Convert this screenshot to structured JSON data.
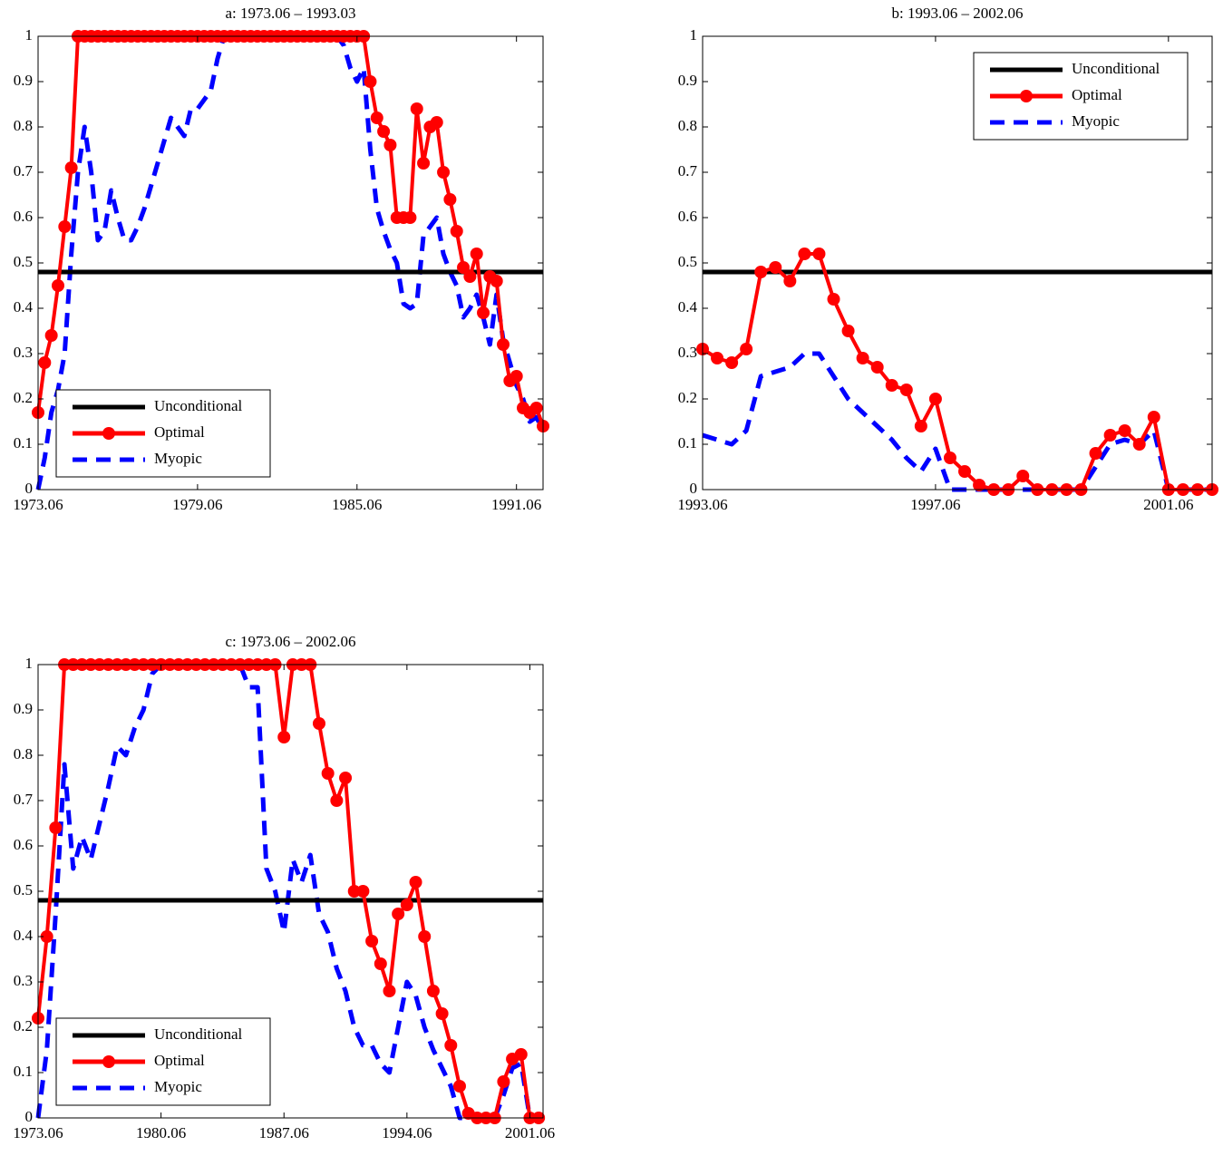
{
  "chart_data": [
    {
      "type": "line",
      "title": "a: 1973.06 – 1993.03",
      "legend": "lower left",
      "grid": false,
      "xlim": [
        1973.5,
        1992.5
      ],
      "ylim": [
        0,
        1
      ],
      "xticks": [
        {
          "value": 1973.5,
          "label": "1973.06"
        },
        {
          "value": 1979.5,
          "label": "1979.06"
        },
        {
          "value": 1985.5,
          "label": "1985.06"
        },
        {
          "value": 1991.5,
          "label": "1991.06"
        }
      ],
      "yticks": [
        0,
        0.1,
        0.2,
        0.3,
        0.4,
        0.5,
        0.6,
        0.7,
        0.8,
        0.9,
        1
      ],
      "x": [
        1973.5,
        1973.75,
        1974,
        1974.25,
        1974.5,
        1974.75,
        1975,
        1975.25,
        1975.5,
        1975.75,
        1976,
        1976.25,
        1976.5,
        1976.75,
        1977,
        1977.25,
        1977.5,
        1977.75,
        1978,
        1978.25,
        1978.5,
        1978.75,
        1979,
        1979.25,
        1979.5,
        1979.75,
        1980,
        1980.25,
        1980.5,
        1980.75,
        1981,
        1981.25,
        1981.5,
        1981.75,
        1982,
        1982.25,
        1982.5,
        1982.75,
        1983,
        1983.25,
        1983.5,
        1983.75,
        1984,
        1984.25,
        1984.5,
        1984.75,
        1985,
        1985.25,
        1985.5,
        1985.75,
        1986,
        1986.25,
        1986.5,
        1986.75,
        1987,
        1987.25,
        1987.5,
        1987.75,
        1988,
        1988.25,
        1988.5,
        1988.75,
        1989,
        1989.25,
        1989.5,
        1989.75,
        1990,
        1990.25,
        1990.5,
        1990.75,
        1991,
        1991.25,
        1991.5,
        1991.75,
        1992,
        1992.25,
        1992.5
      ],
      "series": [
        {
          "name": "Unconditional",
          "color": "#000000",
          "style": "solid",
          "x": [
            1973.5,
            1992.5
          ],
          "values": [
            0.48,
            0.48
          ]
        },
        {
          "name": "Optimal",
          "color": "#ff0000",
          "style": "solid",
          "marker": "circle",
          "values": [
            0.17,
            0.28,
            0.34,
            0.45,
            0.58,
            0.71,
            1,
            1,
            1,
            1,
            1,
            1,
            1,
            1,
            1,
            1,
            1,
            1,
            1,
            1,
            1,
            1,
            1,
            1,
            1,
            1,
            1,
            1,
            1,
            1,
            1,
            1,
            1,
            1,
            1,
            1,
            1,
            1,
            1,
            1,
            1,
            1,
            1,
            1,
            1,
            1,
            1,
            1,
            1,
            1,
            0.9,
            0.82,
            0.79,
            0.76,
            0.6,
            0.6,
            0.6,
            0.84,
            0.72,
            0.8,
            0.81,
            0.7,
            0.64,
            0.57,
            0.49,
            0.47,
            0.52,
            0.39,
            0.47,
            0.46,
            0.32,
            0.24,
            0.25,
            0.18,
            0.17,
            0.18,
            0.14
          ]
        },
        {
          "name": "Myopic",
          "color": "#0000ff",
          "style": "dashed",
          "values": [
            0,
            0.07,
            0.17,
            0.22,
            0.3,
            0.52,
            0.7,
            0.8,
            0.7,
            0.55,
            0.57,
            0.66,
            0.6,
            0.55,
            0.55,
            0.58,
            0.62,
            0.67,
            0.72,
            0.77,
            0.82,
            0.8,
            0.78,
            0.84,
            0.84,
            0.86,
            0.88,
            0.95,
            1,
            1,
            1,
            1,
            1,
            1,
            1,
            1,
            1,
            1,
            1,
            1,
            1,
            1,
            1,
            1,
            1,
            1,
            0.98,
            0.93,
            0.9,
            0.93,
            0.75,
            0.62,
            0.57,
            0.53,
            0.5,
            0.41,
            0.4,
            0.41,
            0.56,
            0.58,
            0.6,
            0.52,
            0.48,
            0.45,
            0.38,
            0.4,
            0.43,
            0.38,
            0.32,
            0.43,
            0.33,
            0.28,
            0.23,
            0.2,
            0.15,
            0.16,
            0.13
          ]
        }
      ]
    },
    {
      "type": "line",
      "title": "b: 1993.06 – 2002.06",
      "legend": "upper right",
      "grid": false,
      "xlim": [
        1993.5,
        2002.25
      ],
      "ylim": [
        0,
        1
      ],
      "xticks": [
        {
          "value": 1993.5,
          "label": "1993.06"
        },
        {
          "value": 1997.5,
          "label": "1997.06"
        },
        {
          "value": 2001.5,
          "label": "2001.06"
        }
      ],
      "yticks": [
        0,
        0.1,
        0.2,
        0.3,
        0.4,
        0.5,
        0.6,
        0.7,
        0.8,
        0.9,
        1
      ],
      "x": [
        1993.5,
        1993.75,
        1994,
        1994.25,
        1994.5,
        1994.75,
        1995,
        1995.25,
        1995.5,
        1995.75,
        1996,
        1996.25,
        1996.5,
        1996.75,
        1997,
        1997.25,
        1997.5,
        1997.75,
        1998,
        1998.25,
        1998.5,
        1998.75,
        1999,
        1999.25,
        1999.5,
        1999.75,
        2000,
        2000.25,
        2000.5,
        2000.75,
        2001,
        2001.25,
        2001.5,
        2001.75,
        2002,
        2002.25
      ],
      "series": [
        {
          "name": "Unconditional",
          "color": "#000000",
          "style": "solid",
          "x": [
            1993.5,
            2002.25
          ],
          "values": [
            0.48,
            0.48
          ]
        },
        {
          "name": "Optimal",
          "color": "#ff0000",
          "style": "solid",
          "marker": "circle",
          "values": [
            0.31,
            0.29,
            0.28,
            0.31,
            0.48,
            0.49,
            0.46,
            0.52,
            0.52,
            0.42,
            0.35,
            0.29,
            0.27,
            0.23,
            0.22,
            0.14,
            0.2,
            0.07,
            0.04,
            0.01,
            0,
            0,
            0.03,
            0,
            0,
            0,
            0,
            0.08,
            0.12,
            0.13,
            0.1,
            0.16,
            0,
            0,
            0,
            0
          ]
        },
        {
          "name": "Myopic",
          "color": "#0000ff",
          "style": "dashed",
          "values": [
            0.12,
            0.11,
            0.1,
            0.13,
            0.25,
            0.26,
            0.27,
            0.3,
            0.3,
            0.25,
            0.2,
            0.17,
            0.14,
            0.11,
            0.07,
            0.04,
            0.09,
            0,
            0,
            0,
            0,
            0,
            0,
            0,
            0,
            0,
            0,
            0.05,
            0.1,
            0.11,
            0.1,
            0.13,
            0,
            0,
            0,
            0
          ]
        }
      ]
    },
    {
      "type": "line",
      "title": "c: 1973.06 – 2002.06",
      "legend": "lower left",
      "grid": false,
      "xlim": [
        1973.5,
        2002.25
      ],
      "ylim": [
        0,
        1
      ],
      "xticks": [
        {
          "value": 1973.5,
          "label": "1973.06"
        },
        {
          "value": 1980.5,
          "label": "1980.06"
        },
        {
          "value": 1987.5,
          "label": "1987.06"
        },
        {
          "value": 1994.5,
          "label": "1994.06"
        },
        {
          "value": 2001.5,
          "label": "2001.06"
        }
      ],
      "yticks": [
        0,
        0.1,
        0.2,
        0.3,
        0.4,
        0.5,
        0.6,
        0.7,
        0.8,
        0.9,
        1
      ],
      "x": [
        1973.5,
        1974,
        1974.5,
        1975,
        1975.5,
        1976,
        1976.5,
        1977,
        1977.5,
        1978,
        1978.5,
        1979,
        1979.5,
        1980,
        1980.5,
        1981,
        1981.5,
        1982,
        1982.5,
        1983,
        1983.5,
        1984,
        1984.5,
        1985,
        1985.5,
        1986,
        1986.5,
        1987,
        1987.5,
        1988,
        1988.5,
        1989,
        1989.5,
        1990,
        1990.5,
        1991,
        1991.5,
        1992,
        1992.5,
        1993,
        1993.5,
        1994,
        1994.5,
        1995,
        1995.5,
        1996,
        1996.5,
        1997,
        1997.5,
        1998,
        1998.5,
        1999,
        1999.5,
        2000,
        2000.5,
        2001,
        2001.5,
        2002
      ],
      "series": [
        {
          "name": "Unconditional",
          "color": "#000000",
          "style": "solid",
          "x": [
            1973.5,
            2002.25
          ],
          "values": [
            0.48,
            0.48
          ]
        },
        {
          "name": "Optimal",
          "color": "#ff0000",
          "style": "solid",
          "marker": "circle",
          "values": [
            0.22,
            0.4,
            0.64,
            1,
            1,
            1,
            1,
            1,
            1,
            1,
            1,
            1,
            1,
            1,
            1,
            1,
            1,
            1,
            1,
            1,
            1,
            1,
            1,
            1,
            1,
            1,
            1,
            1,
            0.84,
            1,
            1,
            1,
            0.87,
            0.76,
            0.7,
            0.75,
            0.5,
            0.5,
            0.39,
            0.34,
            0.28,
            0.45,
            0.47,
            0.52,
            0.4,
            0.28,
            0.23,
            0.16,
            0.07,
            0.01,
            0,
            0,
            0,
            0.08,
            0.13,
            0.14,
            0,
            0
          ]
        },
        {
          "name": "Myopic",
          "color": "#0000ff",
          "style": "dashed",
          "values": [
            0,
            0.15,
            0.45,
            0.78,
            0.55,
            0.62,
            0.57,
            0.65,
            0.73,
            0.82,
            0.8,
            0.86,
            0.9,
            0.98,
            1,
            1,
            1,
            1,
            1,
            1,
            1,
            1,
            1,
            1,
            0.95,
            0.95,
            0.55,
            0.5,
            0.41,
            0.57,
            0.52,
            0.58,
            0.45,
            0.41,
            0.33,
            0.28,
            0.2,
            0.16,
            0.16,
            0.12,
            0.1,
            0.2,
            0.3,
            0.27,
            0.2,
            0.15,
            0.11,
            0.07,
            0,
            0,
            0,
            0,
            0,
            0.05,
            0.11,
            0.12,
            0,
            0
          ]
        }
      ]
    }
  ]
}
